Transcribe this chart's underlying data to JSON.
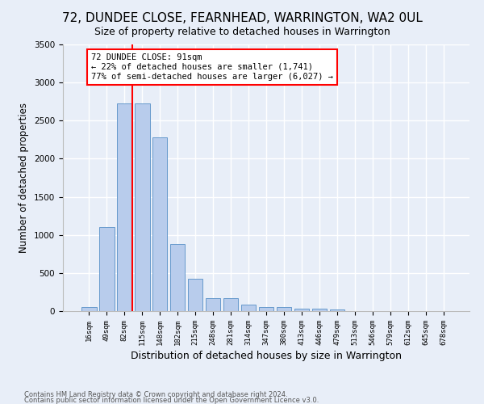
{
  "title": "72, DUNDEE CLOSE, FEARNHEAD, WARRINGTON, WA2 0UL",
  "subtitle": "Size of property relative to detached houses in Warrington",
  "xlabel": "Distribution of detached houses by size in Warrington",
  "ylabel": "Number of detached properties",
  "categories": [
    "16sqm",
    "49sqm",
    "82sqm",
    "115sqm",
    "148sqm",
    "182sqm",
    "215sqm",
    "248sqm",
    "281sqm",
    "314sqm",
    "347sqm",
    "380sqm",
    "413sqm",
    "446sqm",
    "479sqm",
    "513sqm",
    "546sqm",
    "579sqm",
    "612sqm",
    "645sqm",
    "678sqm"
  ],
  "values": [
    50,
    1100,
    2730,
    2730,
    2280,
    880,
    420,
    170,
    170,
    90,
    55,
    55,
    35,
    35,
    25,
    5,
    5,
    0,
    0,
    0,
    0
  ],
  "bar_color": "#b8ccec",
  "bar_edgecolor": "#6699cc",
  "background_color": "#e8eef8",
  "grid_color": "#ffffff",
  "vline_color": "red",
  "annotation_line1": "72 DUNDEE CLOSE: 91sqm",
  "annotation_line2": "← 22% of detached houses are smaller (1,741)",
  "annotation_line3": "77% of semi-detached houses are larger (6,027) →",
  "ylim": [
    0,
    3500
  ],
  "yticks": [
    0,
    500,
    1000,
    1500,
    2000,
    2500,
    3000,
    3500
  ],
  "footer1": "Contains HM Land Registry data © Crown copyright and database right 2024.",
  "footer2": "Contains public sector information licensed under the Open Government Licence v3.0.",
  "title_fontsize": 11,
  "subtitle_fontsize": 9,
  "xlabel_fontsize": 9,
  "ylabel_fontsize": 8.5
}
